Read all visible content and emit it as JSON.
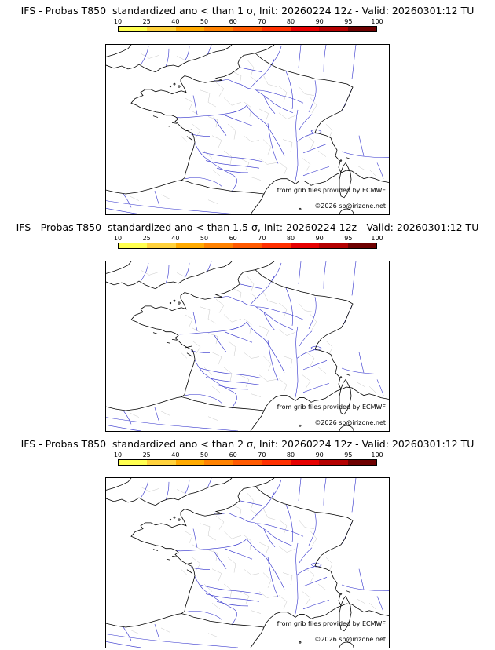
{
  "colorbar": {
    "labels": [
      "10",
      "25",
      "40",
      "50",
      "60",
      "70",
      "80",
      "90",
      "95",
      "100"
    ],
    "segment_colors": [
      "#ffff50",
      "#ffd23c",
      "#ffaa00",
      "#ff8200",
      "#ff5a00",
      "#ff3000",
      "#e60000",
      "#b40000",
      "#6e0000"
    ]
  },
  "panels": [
    {
      "title": "IFS - Probas T850  standardized ano < than 1 σ, Init: 20260224 12z - Valid: 20260301:12 TU",
      "credit_line1": "from grib files provided by ECMWF",
      "credit_line2": "©2026 sb@irizone.net"
    },
    {
      "title": "IFS - Probas T850  standardized ano < than 1.5 σ, Init: 20260224 12z - Valid: 20260301:12 TU",
      "credit_line1": "from grib files provided by ECMWF",
      "credit_line2": "©2026 sb@irizone.net"
    },
    {
      "title": "IFS - Probas T850  standardized ano < than 2 σ, Init: 20260224 12z - Valid: 20260301:12 TU",
      "credit_line1": "from grib files provided by ECMWF",
      "credit_line2": "©2026 sb@irizone.net"
    }
  ],
  "map": {
    "region": "France",
    "coast_color": "#000000",
    "river_color": "#3030cc",
    "boundary_color": "#bfbfbf"
  }
}
